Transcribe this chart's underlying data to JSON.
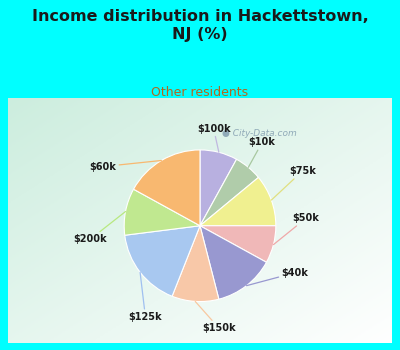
{
  "title": "Income distribution in Hackettstown,\nNJ (%)",
  "subtitle": "Other residents",
  "labels": [
    "$100k",
    "$10k",
    "$75k",
    "$50k",
    "$40k",
    "$150k",
    "$125k",
    "$200k",
    "$60k"
  ],
  "sizes": [
    8,
    6,
    11,
    8,
    13,
    10,
    17,
    10,
    17
  ],
  "colors": [
    "#b8b0e0",
    "#b0ccaa",
    "#f0f090",
    "#f0b8b8",
    "#9898d0",
    "#f8c8a8",
    "#a8c8f0",
    "#c0e890",
    "#f8b870"
  ],
  "bg_cyan": "#00ffff",
  "bg_chart_top": "#f0faf5",
  "bg_chart_bottom": "#d8f0e8",
  "title_color": "#1a1a1a",
  "subtitle_color": "#b06820",
  "label_color": "#1a1a1a",
  "watermark_color": "#90aab8",
  "line_colors": {
    "$100k": "#c8c0e0",
    "$10k": "#a8c8a0",
    "$75k": "#e8e880",
    "$50k": "#f0b0b0",
    "$40k": "#9898d8",
    "$150k": "#f8d0b0",
    "$125k": "#a0c0f0",
    "$200k": "#c0e880",
    "$60k": "#f8c070"
  }
}
